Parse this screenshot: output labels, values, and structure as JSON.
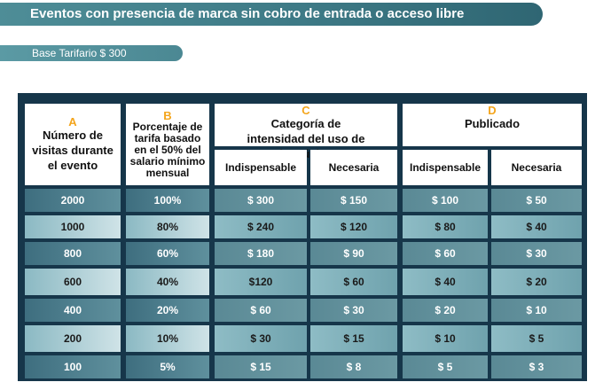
{
  "title": "Eventos con presencia de marca sin cobro de entrada o acceso libre",
  "base": "Base Tarifario $ 300",
  "header": {
    "a_letter": "A",
    "a_label": "Número de visitas durante el evento",
    "b_letter": "B",
    "b_label": "Porcentaje de tarifa basado en el 50% del salario mínimo mensual",
    "c_letter": "C",
    "c_label": "Categoría de intensidad del uso de la música",
    "d_letter": "D",
    "d_label": "Publicado",
    "c_sub1": "Indispensable",
    "c_sub2": "Necesaria",
    "d_sub1": "Indispensable",
    "d_sub2": "Necesaria"
  },
  "rows": [
    [
      "2000",
      "100%",
      "$ 300",
      "$ 150",
      "$ 100",
      "$ 50"
    ],
    [
      "1000",
      "80%",
      "$ 240",
      "$ 120",
      "$ 80",
      "$ 40"
    ],
    [
      "800",
      "60%",
      "$ 180",
      "$ 90",
      "$ 60",
      "$ 30"
    ],
    [
      "600",
      "40%",
      "$120",
      "$ 60",
      "$ 40",
      "$ 20"
    ],
    [
      "400",
      "20%",
      "$ 60",
      "$ 30",
      "$ 20",
      "$ 10"
    ],
    [
      "200",
      "10%",
      "$ 30",
      "$ 15",
      "$ 10",
      "$ 5"
    ],
    [
      "100",
      "5%",
      "$ 15",
      "$ 8",
      "$ 5",
      "$ 3"
    ]
  ]
}
